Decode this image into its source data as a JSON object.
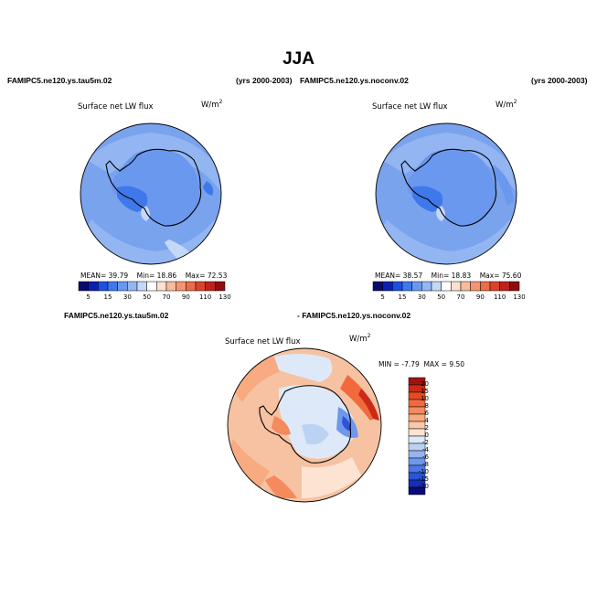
{
  "title": "JJA",
  "panels": [
    {
      "case": "FAMIPC5.ne120.ys.tau5m.02",
      "years": "(yrs 2000-2003)",
      "variable": "Surface net LW flux",
      "units_base": "W/m",
      "units_exp": "2",
      "mean_label": "MEAN=",
      "mean": "39.79",
      "min_label": "Min=",
      "min": "18.86",
      "max_label": "Max=",
      "max": "72.53"
    },
    {
      "case": "FAMIPC5.ne120.ys.noconv.02",
      "years": "(yrs 2000-2003)",
      "variable": "Surface net LW flux",
      "units_base": "W/m",
      "units_exp": "2",
      "mean_label": "MEAN=",
      "mean": "38.57",
      "min_label": "Min=",
      "min": "18.83",
      "max_label": "Max=",
      "max": "75.60"
    }
  ],
  "diff_panel": {
    "case_a": "FAMIPC5.ne120.ys.tau5m.02",
    "case_b": "- FAMIPC5.ne120.ys.noconv.02",
    "variable": "Surface net LW flux",
    "units_base": "W/m",
    "units_exp": "2",
    "min_label": "MIN =",
    "min": "-7.79",
    "max_label": "MAX =",
    "max": "9.50"
  },
  "colorbar_abs": {
    "labels": [
      "5",
      "15",
      "30",
      "50",
      "70",
      "90",
      "110",
      "130"
    ],
    "colors": [
      "#0a0a6e",
      "#0a1fb4",
      "#1f4fe0",
      "#3f78ea",
      "#6a98ee",
      "#93b6f3",
      "#c4d8f7",
      "#ffffff",
      "#fde0cf",
      "#f9bb9c",
      "#f49470",
      "#ec6c4a",
      "#d9432c",
      "#bd231a",
      "#8e0d10"
    ]
  },
  "colorbar_diff": {
    "labels": [
      "20",
      "15",
      "10",
      "8",
      "6",
      "4",
      "2",
      "0",
      "-2",
      "-4",
      "-6",
      "-8",
      "-10",
      "-15",
      "-20"
    ],
    "colors": [
      "#9c1510",
      "#cc2a18",
      "#e64a24",
      "#f06a3e",
      "#f58a5c",
      "#f8aa80",
      "#fbc8a6",
      "#fde3d1",
      "#dde9f8",
      "#bcd2f3",
      "#97b6ef",
      "#6f97ea",
      "#4a78e6",
      "#2a55d8",
      "#1430b4",
      "#0a0a78"
    ]
  },
  "colors": {
    "ocean_abs": "#7aa3ee",
    "land_abs": "#5f8cea",
    "diff_base": "#f6c2a2"
  }
}
